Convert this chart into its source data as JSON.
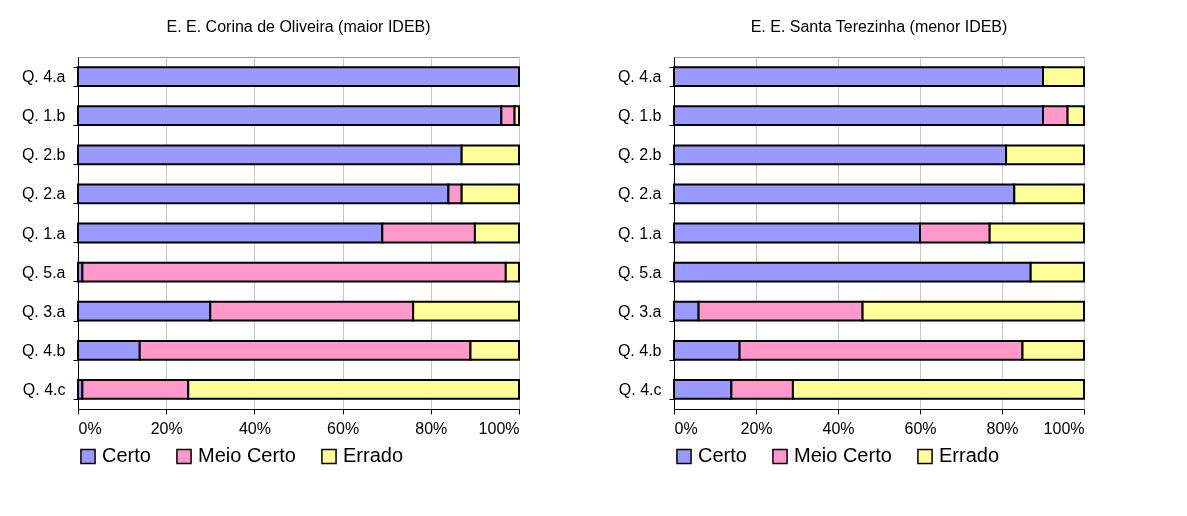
{
  "chart_data": [
    {
      "type": "bar",
      "orientation": "horizontal",
      "stacked": true,
      "title": "E. E. Corina de Oliveira  (maior IDEB)",
      "categories": [
        "Q. 4.a",
        "Q. 1.b",
        "Q. 2.b",
        "Q. 2.a",
        "Q. 1.a",
        "Q. 5.a",
        "Q. 3.a",
        "Q. 4.b",
        "Q. 4.c"
      ],
      "series": [
        {
          "name": "Certo",
          "color": "#9999ff",
          "values": [
            100,
            96,
            87,
            84,
            69,
            1,
            30,
            14,
            1
          ]
        },
        {
          "name": "Meio Certo",
          "color": "#ff99cc",
          "values": [
            0,
            3,
            0,
            3,
            21,
            96,
            46,
            75,
            24
          ]
        },
        {
          "name": "Errado",
          "color": "#ffff99",
          "values": [
            0,
            1,
            13,
            13,
            10,
            3,
            24,
            11,
            75
          ]
        }
      ],
      "xlim": [
        0,
        100
      ],
      "xticks": [
        {
          "value": 0,
          "label": "0%"
        },
        {
          "value": 20,
          "label": "20%"
        },
        {
          "value": 40,
          "label": "40%"
        },
        {
          "value": 60,
          "label": "60%"
        },
        {
          "value": 80,
          "label": "80%"
        },
        {
          "value": 100,
          "label": "100%"
        }
      ],
      "grid": "x",
      "legend": "bottom"
    },
    {
      "type": "bar",
      "orientation": "horizontal",
      "stacked": true,
      "title": "E. E. Santa Terezinha  (menor IDEB)",
      "categories": [
        "Q. 4.a",
        "Q. 1.b",
        "Q. 2.b",
        "Q. 2.a",
        "Q. 1.a",
        "Q. 5.a",
        "Q. 3.a",
        "Q. 4.b",
        "Q. 4.c"
      ],
      "series": [
        {
          "name": "Certo",
          "color": "#9999ff",
          "values": [
            90,
            90,
            81,
            83,
            60,
            87,
            6,
            16,
            14
          ]
        },
        {
          "name": "Meio Certo",
          "color": "#ff99cc",
          "values": [
            0,
            6,
            0,
            0,
            17,
            0,
            40,
            69,
            15
          ]
        },
        {
          "name": "Errado",
          "color": "#ffff99",
          "values": [
            10,
            4,
            19,
            17,
            23,
            13,
            54,
            15,
            71
          ]
        }
      ],
      "xlim": [
        0,
        100
      ],
      "xticks": [
        {
          "value": 0,
          "label": "0%"
        },
        {
          "value": 20,
          "label": "20%"
        },
        {
          "value": 40,
          "label": "40%"
        },
        {
          "value": 60,
          "label": "60%"
        },
        {
          "value": 80,
          "label": "80%"
        },
        {
          "value": 100,
          "label": "100%"
        }
      ],
      "grid": "x",
      "legend": "bottom"
    }
  ]
}
